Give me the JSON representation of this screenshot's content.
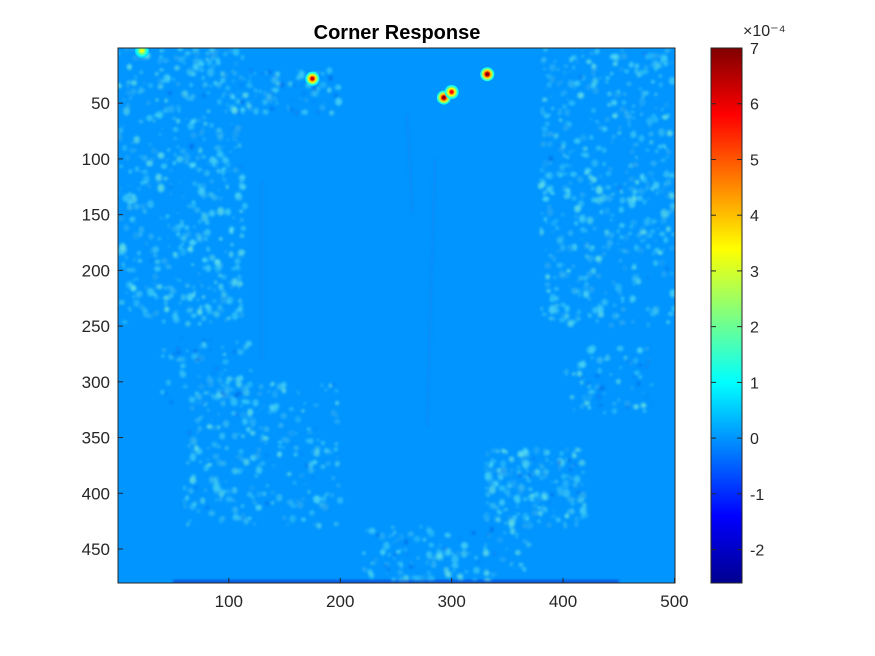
{
  "chart_data": {
    "type": "heatmap",
    "title": "Corner Response",
    "xlabel": "",
    "ylabel": "",
    "x_ticks": [
      100,
      200,
      300,
      400,
      500
    ],
    "y_ticks": [
      50,
      100,
      150,
      200,
      250,
      300,
      350,
      400,
      450
    ],
    "xlim": [
      0.5,
      500.5
    ],
    "ylim": [
      0.5,
      480.5
    ],
    "y_reversed": true,
    "colormap": "jet",
    "background_value": 0,
    "colorbar": {
      "exponent_label": "×10⁻⁴",
      "ticks": [
        -2,
        -1,
        0,
        1,
        2,
        3,
        4,
        5,
        6,
        7
      ],
      "range": [
        -2.6,
        7.0
      ]
    },
    "peaks": [
      {
        "x": 175,
        "y": 28,
        "value": 6.2
      },
      {
        "x": 293,
        "y": 45,
        "value": 6.9
      },
      {
        "x": 300,
        "y": 40,
        "value": 5.8
      },
      {
        "x": 332,
        "y": 24,
        "value": 7.0
      },
      {
        "x": 22,
        "y": 3,
        "value": 3.2
      }
    ]
  }
}
